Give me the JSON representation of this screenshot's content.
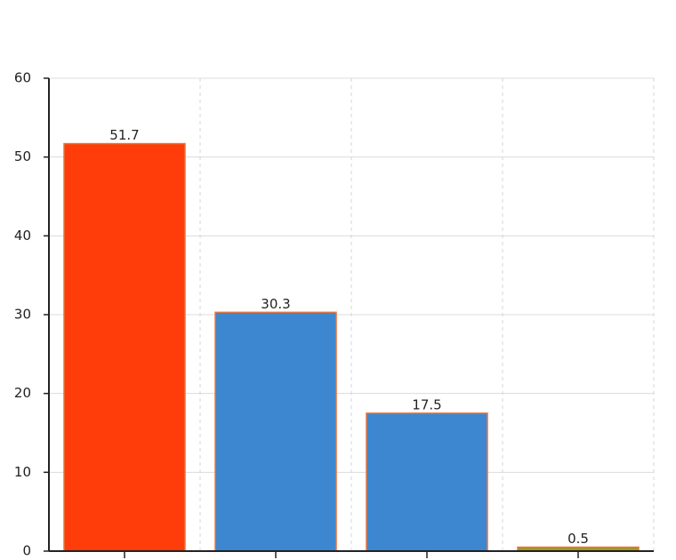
{
  "chart_data": {
    "type": "bar",
    "categories": [
      null,
      null,
      null,
      null
    ],
    "values": [
      51.7,
      30.3,
      17.5,
      0.5
    ],
    "colors": [
      "#fe3d0a",
      "#3c87cf",
      "#3c87cf",
      "#9e9a25"
    ],
    "edge_color": "#e8743b",
    "ylim": [
      0,
      60
    ],
    "yticks": [
      0,
      10,
      20,
      30,
      40,
      50,
      60
    ],
    "grid": true
  }
}
